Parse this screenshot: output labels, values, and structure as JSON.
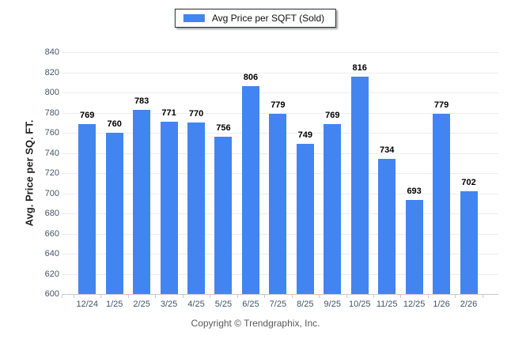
{
  "legend": {
    "label": "Avg Price per SQFT (Sold)"
  },
  "y_axis": {
    "title": "Avg. Price per SQ. FT."
  },
  "footer": {
    "text": "Copyright © Trendgraphix, Inc."
  },
  "colors": {
    "bar": "#4285f0",
    "grid": "#ededed",
    "axis": "#c9c9c9",
    "tick_label": "#44546a",
    "value_label": "#000000",
    "legend_border": "#232a35",
    "footer_text": "#595959"
  },
  "chart_data": {
    "type": "bar",
    "title": "",
    "legend": [
      "Avg Price per SQFT (Sold)"
    ],
    "legend_position": "top-center",
    "categories": [
      "12/24",
      "1/25",
      "2/25",
      "3/25",
      "4/25",
      "5/25",
      "6/25",
      "7/25",
      "8/25",
      "9/25",
      "10/25",
      "11/25",
      "12/25",
      "1/26",
      "2/26"
    ],
    "values": [
      769,
      760,
      783,
      771,
      770,
      756,
      806,
      779,
      749,
      769,
      816,
      734,
      693,
      779,
      702
    ],
    "xlabel": "",
    "ylabel": "Avg. Price per SQ. FT.",
    "ylim": [
      600,
      840
    ],
    "ytick_step": 20,
    "grid": true,
    "value_labels": true
  }
}
